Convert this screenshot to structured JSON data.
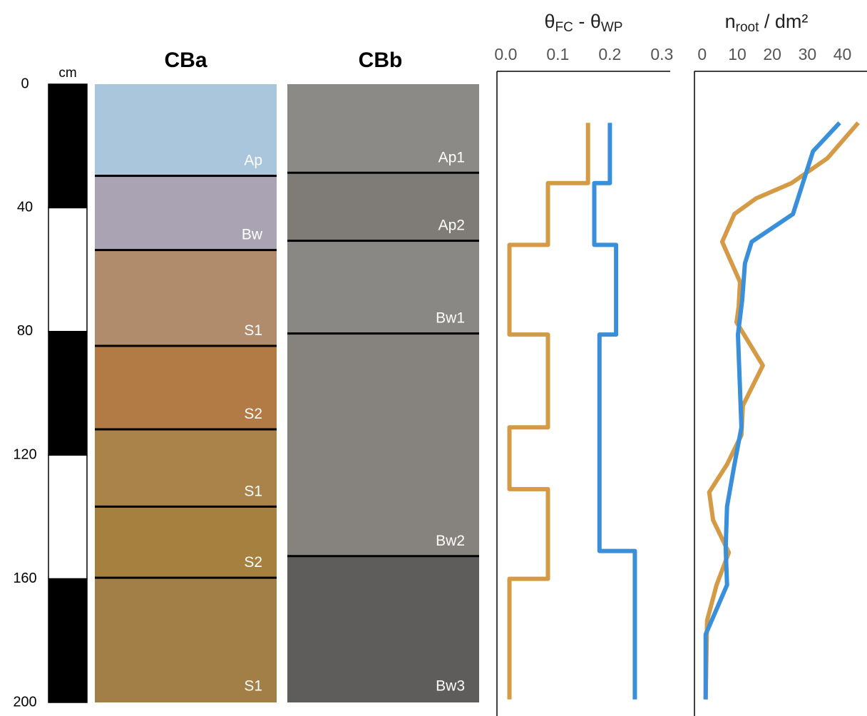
{
  "depth_scale": {
    "unit": "cm",
    "ylim": [
      0,
      200
    ],
    "yticks": [
      0,
      40,
      80,
      120,
      160,
      200
    ]
  },
  "profiles": [
    {
      "name": "CBa",
      "horizons": [
        {
          "label": "Ap",
          "bottom": 30,
          "color": "#a9c6dc"
        },
        {
          "label": "Bw",
          "bottom": 54,
          "color": "#a9a3b4"
        },
        {
          "label": "S1",
          "bottom": 85,
          "color": "#b08c6c"
        },
        {
          "label": "S2",
          "bottom": 112,
          "color": "#b27a44"
        },
        {
          "label": "S1",
          "bottom": 137,
          "color": "#a98349"
        },
        {
          "label": "S2",
          "bottom": 160,
          "color": "#a6803f"
        },
        {
          "label": "S1",
          "bottom": 200,
          "color": "#a27f46"
        }
      ]
    },
    {
      "name": "CBb",
      "horizons": [
        {
          "label": "Ap1",
          "bottom": 29,
          "color": "#8c8a86"
        },
        {
          "label": "Ap2",
          "bottom": 51,
          "color": "#7f7c78"
        },
        {
          "label": "Bw1",
          "bottom": 81,
          "color": "#8a8884"
        },
        {
          "label": "Bw2",
          "bottom": 153,
          "color": "#86837e"
        },
        {
          "label": "Bw3",
          "bottom": 200,
          "color": "#5e5d5b"
        }
      ]
    }
  ],
  "chart_data": [
    {
      "type": "line",
      "title": [
        {
          "text": "θ"
        },
        {
          "text": "FC",
          "sub": true
        },
        {
          "text": " - θ"
        },
        {
          "text": "WP",
          "sub": true
        }
      ],
      "xlim": [
        -0.017,
        0.316
      ],
      "xticks": [
        {
          "value": 0,
          "label": "0.0"
        },
        {
          "value": 0.1,
          "label": "0.1"
        },
        {
          "value": 0.2,
          "label": "0.2"
        },
        {
          "value": 0.3,
          "label": "0.3"
        }
      ],
      "ylim": [
        0,
        200
      ],
      "y_inverted": true,
      "series": [
        {
          "color": "#d59a45",
          "values": [
            0.158,
            0.158,
            0.081,
            0.081,
            0.007,
            0.007,
            0.081,
            0.081,
            0.007,
            0.007,
            0.081,
            0.081,
            0.007,
            0.007
          ],
          "depth": [
            12.5,
            32,
            32,
            52,
            52,
            81,
            81,
            111,
            111,
            131,
            131,
            160,
            160,
            199
          ]
        },
        {
          "color": "#3a8fdb",
          "values": [
            0.2,
            0.2,
            0.17,
            0.17,
            0.212,
            0.212,
            0.18,
            0.18,
            0.248,
            0.248
          ],
          "depth": [
            12.5,
            32,
            32,
            52,
            52,
            81,
            81,
            151,
            151,
            199
          ]
        }
      ]
    },
    {
      "type": "line",
      "title": [
        {
          "text": "n"
        },
        {
          "text": "root",
          "sub": true
        },
        {
          "text": " / dm²"
        }
      ],
      "xlim": [
        -2.2,
        47
      ],
      "xticks": [
        0,
        10,
        20,
        30,
        40
      ],
      "ylim": [
        0,
        200
      ],
      "y_inverted": true,
      "series": [
        {
          "color": "#d59a45",
          "values": [
            44.5,
            35.7,
            25.5,
            15.3,
            9.2,
            5.7,
            10.8,
            10.4,
            9.8,
            17.3,
            11.6,
            11.2,
            7.1,
            2,
            3.1,
            7.6,
            4.1,
            1.4,
            1
          ],
          "depth": [
            12.5,
            24,
            32,
            37,
            42,
            51,
            64,
            72,
            77,
            91,
            104,
            113.5,
            123,
            132,
            141,
            151.5,
            162,
            173.5,
            199
          ]
        },
        {
          "color": "#3a8fdb",
          "values": [
            39.2,
            31.6,
            25.9,
            14.1,
            12.2,
            11.4,
            10.2,
            11.2,
            9.2,
            7.1,
            6.7,
            7.1,
            1,
            1
          ],
          "depth": [
            12.5,
            21.7,
            42,
            51,
            58,
            70,
            81,
            111,
            123,
            136.6,
            150,
            162,
            178,
            199
          ]
        }
      ]
    }
  ]
}
